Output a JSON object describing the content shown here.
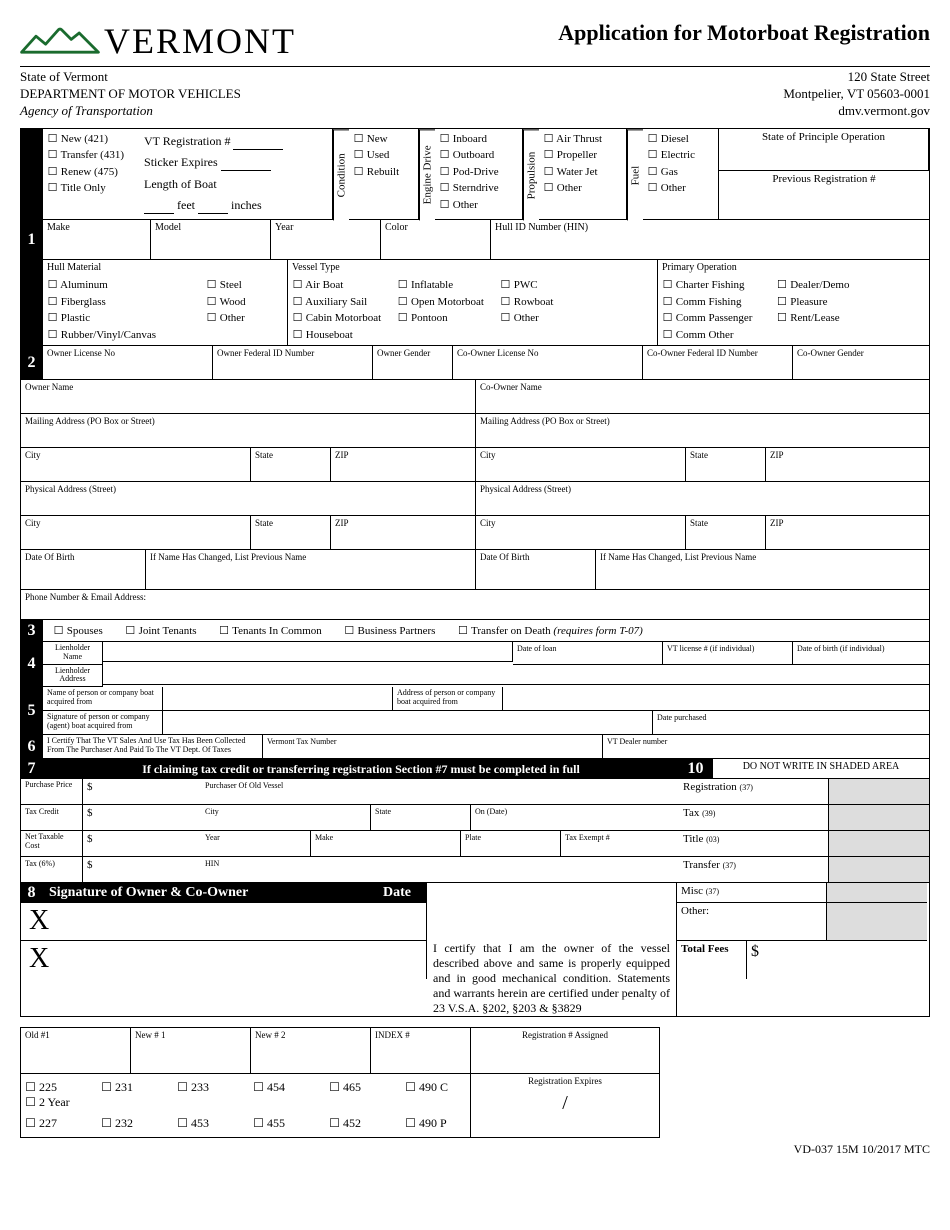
{
  "logo_text": "VERMONT",
  "title": "Application for Motorboat Registration",
  "state_line": "State of Vermont",
  "dept": "DEPARTMENT OF MOTOR VEHICLES",
  "agency": "Agency of Transportation",
  "addr1": "120 State Street",
  "addr2": "Montpelier, VT 05603-0001",
  "addr3": "dmv.vermont.gov",
  "reg_types": {
    "new": "New (421)",
    "transfer": "Transfer (431)",
    "renew": "Renew (475)",
    "title": "Title Only"
  },
  "reg_num_label": "VT Registration #",
  "sticker_label": "Sticker Expires",
  "length_label": "Length of Boat",
  "feet": "feet",
  "inches": "inches",
  "condition": {
    "label": "Condition",
    "new": "New",
    "used": "Used",
    "rebuilt": "Rebuilt"
  },
  "engine": {
    "label": "Engine Drive",
    "inboard": "Inboard",
    "outboard": "Outboard",
    "pod": "Pod-Drive",
    "stern": "Sterndrive",
    "other": "Other"
  },
  "propulsion": {
    "label": "Propulsion",
    "air": "Air Thrust",
    "prop": "Propeller",
    "water": "Water Jet",
    "other": "Other"
  },
  "fuel": {
    "label": "Fuel",
    "diesel": "Diesel",
    "electric": "Electric",
    "gas": "Gas",
    "other": "Other"
  },
  "principle": {
    "label": "State of Principle Operation",
    "prev": "Previous Registration #"
  },
  "s1": {
    "make": "Make",
    "model": "Model",
    "year": "Year",
    "color": "Color",
    "hin": "Hull ID Number (HIN)"
  },
  "hull": {
    "label": "Hull Material",
    "al": "Aluminum",
    "fg": "Fiberglass",
    "pl": "Plastic",
    "rv": "Rubber/Vinyl/Canvas",
    "st": "Steel",
    "wd": "Wood",
    "ot": "Other"
  },
  "vessel": {
    "label": "Vessel Type",
    "air": "Air Boat",
    "aux": "Auxiliary Sail",
    "cabin": "Cabin Motorboat",
    "house": "Houseboat",
    "inf": "Inflatable",
    "open": "Open Motorboat",
    "pon": "Pontoon",
    "pwc": "PWC",
    "row": "Rowboat",
    "oth": "Other"
  },
  "primop": {
    "label": "Primary Operation",
    "cf": "Charter Fishing",
    "cmf": "Comm Fishing",
    "cp": "Comm Passenger",
    "co": "Comm Other",
    "dd": "Dealer/Demo",
    "pl": "Pleasure",
    "rl": "Rent/Lease"
  },
  "s2": {
    "olic": "Owner License No",
    "ofed": "Owner Federal ID Number",
    "ogen": "Owner Gender",
    "colic": "Co-Owner License No",
    "cofed": "Co-Owner Federal ID Number",
    "cogen": "Co-Owner Gender",
    "oname": "Owner Name",
    "coname": "Co-Owner Name",
    "mail": "Mailing Address (PO Box or Street)",
    "comail": "Mailing Address (PO Box or Street)",
    "city": "City",
    "state": "State",
    "zip": "ZIP",
    "phys": "Physical Address (Street)",
    "cophys": "Physical Address (Street)",
    "dob": "Date Of Birth",
    "prev": "If Name Has Changed, List Previous Name",
    "phone": "Phone Number & Email Address:"
  },
  "s3": {
    "sp": "Spouses",
    "jt": "Joint Tenants",
    "tc": "Tenants In Common",
    "bp": "Business Partners",
    "tod": "Transfer on Death",
    "tod_note": "(requires form T-07)"
  },
  "s4": {
    "lname": "Lienholder Name",
    "laddr": "Lienholder Address",
    "dloan": "Date of loan",
    "vtlic": "VT license # (if individual)",
    "ldob": "Date of birth (if individual)"
  },
  "s5": {
    "name": "Name of person or company boat acquired from",
    "addr": "Address of person or company boat acquired from",
    "sig": "Signature of person or company (agent) boat acquired from",
    "date": "Date purchased"
  },
  "s6": {
    "cert": "I Certify That The VT Sales And Use Tax Has Been Collected From The Purchaser And Paid To The VT Dept. Of Taxes",
    "vtn": "Vermont Tax Number",
    "dealer": "VT Dealer number"
  },
  "s7": {
    "hdr": "If claiming tax credit or transferring registration Section #7 must be completed in full",
    "pp": "Purchase Price",
    "tc": "Tax Credit",
    "nt": "Net Taxable Cost",
    "tax": "Tax (6%)",
    "pov": "Purchaser Of Old Vessel",
    "city": "City",
    "state": "State",
    "on": "On (Date)",
    "year": "Year",
    "make": "Make",
    "plate": "Plate",
    "exempt": "Tax Exempt #",
    "hin": "HIN",
    "dollar": "$"
  },
  "s8": {
    "hdr": "Signature of Owner & Co-Owner",
    "date": "Date",
    "cert": "I certify that I am the owner of the vessel described above and same is properly equipped and in good mechanical condition. Statements and warrants herein are certified under penalty of 23 V.S.A. §202, §203 & §3829"
  },
  "s10": {
    "hdr": "DO NOT WRITE IN SHADED AREA",
    "reg": "Registration",
    "reg_n": "(37)",
    "tax": "Tax",
    "tax_n": "(39)",
    "title": "Title",
    "title_n": "(03)",
    "trans": "Transfer",
    "trans_n": "(37)",
    "misc": "Misc",
    "misc_n": "(37)",
    "other": "Other:",
    "total": "Total Fees",
    "dollar": "$"
  },
  "office": {
    "old1": "Old #1",
    "new1": "New # 1",
    "new2": "New # 2",
    "index": "INDEX #",
    "rega": "Registration # Assigned",
    "rege": "Registration Expires",
    "slash": "/",
    "codes": [
      "225",
      "231",
      "233",
      "454",
      "465",
      "490 C",
      "2 Year",
      "227",
      "232",
      "453",
      "455",
      "452",
      "490 P"
    ]
  },
  "form_code": "VD-037 15M 10/2017 MTC"
}
